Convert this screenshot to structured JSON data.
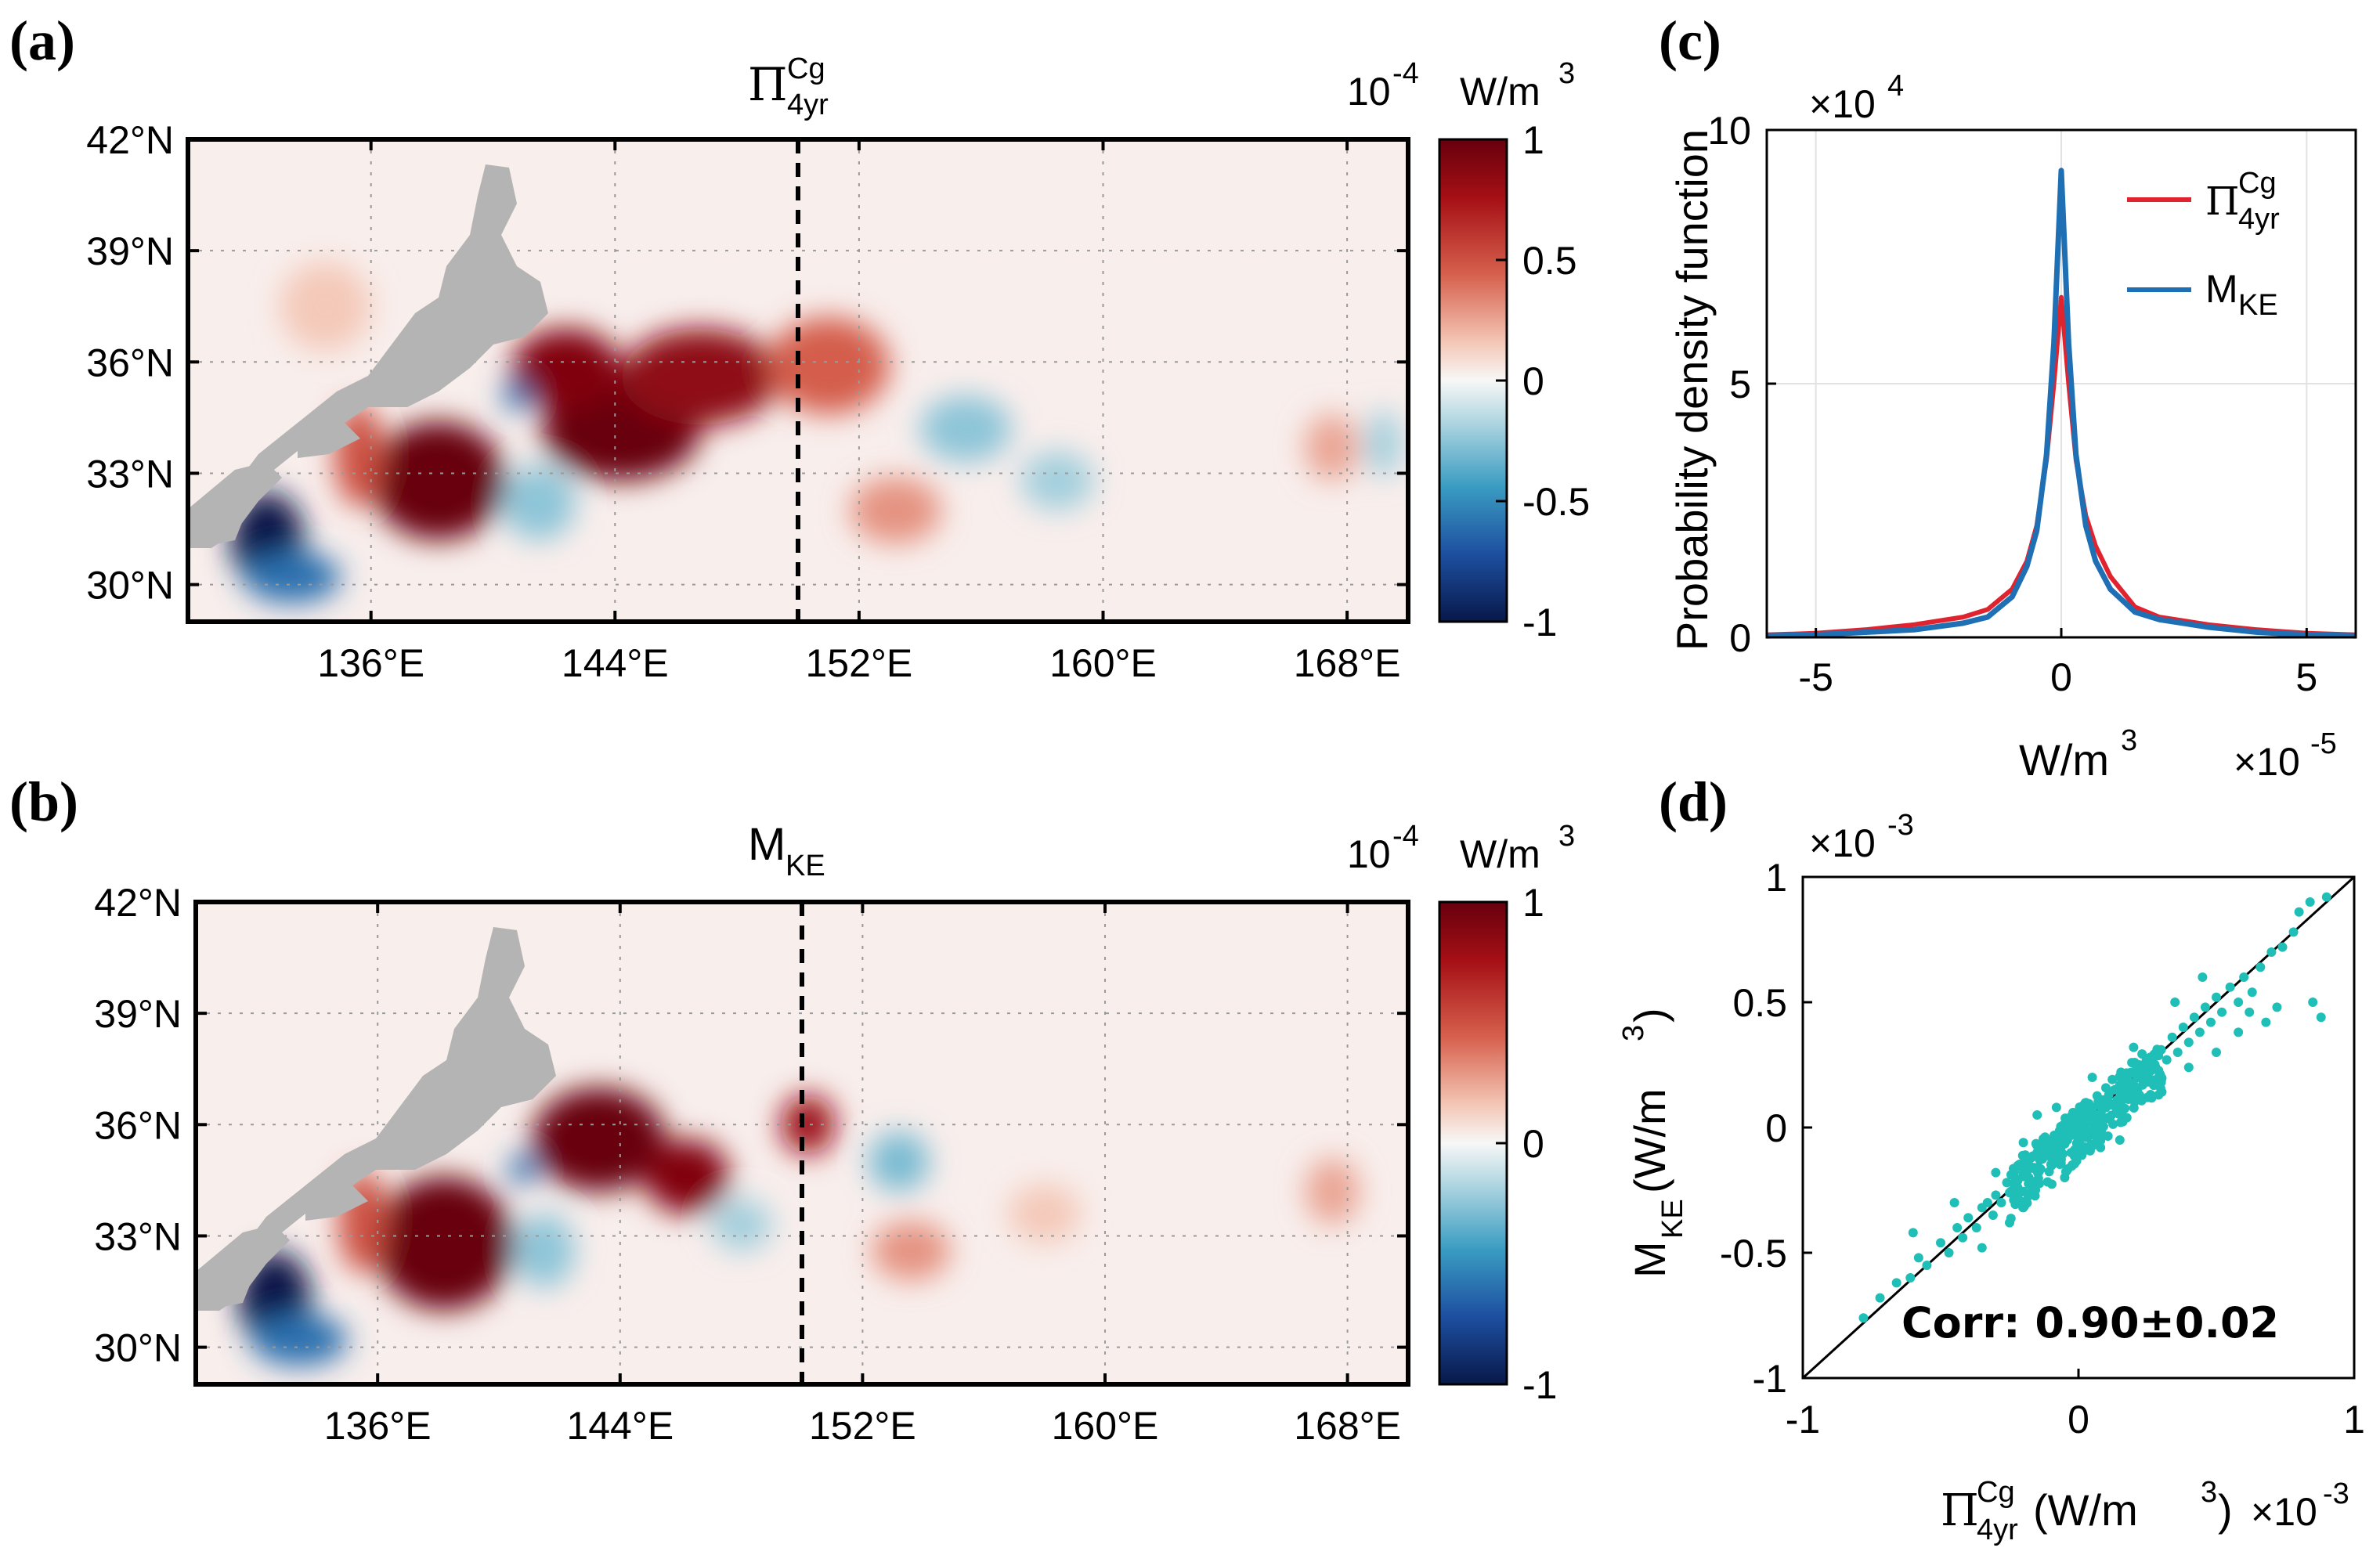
{
  "panels": {
    "a": {
      "letter": "(a)",
      "title_main": "Π",
      "title_sup": "Cg",
      "title_sub": "4yr",
      "cb_exp_base": "10",
      "cb_exp_pow": "-4",
      "cb_unit_main": "W/m",
      "cb_unit_pow": "3"
    },
    "b": {
      "letter": "(b)",
      "title_main": "M",
      "title_sub": "KE",
      "cb_exp_base": "10",
      "cb_exp_pow": "-4",
      "cb_unit_main": "W/m",
      "cb_unit_pow": "3"
    },
    "c": {
      "letter": "(c)",
      "ylabel": "Probability density function",
      "xlabel_main": "W/m",
      "xlabel_pow": "3",
      "y_mult": "×10",
      "y_mult_pow": "4",
      "x_mult": "×10",
      "x_mult_pow": "-5",
      "legend_pi_main": "Π",
      "legend_pi_sup": "Cg",
      "legend_pi_sub": "4yr",
      "legend_m_main": "M",
      "legend_m_sub": "KE"
    },
    "d": {
      "letter": "(d)",
      "ylabel_main": "M",
      "ylabel_sub": "KE",
      "ylabel_rest": " (W/m",
      "ylabel_pow": "3",
      "ylabel_close": ")",
      "xlabel_main": "Π",
      "xlabel_sup": "Cg",
      "xlabel_sub": "4yr",
      "xlabel_rest": " (W/m",
      "xlabel_pow": "3",
      "xlabel_close": ")",
      "y_mult": "×10",
      "y_mult_pow": "-3",
      "x_mult": "×10",
      "x_mult_pow": "-3",
      "corr_text": "Corr: 0.90±0.02"
    }
  },
  "colors": {
    "red_line": "#e0242f",
    "blue_line": "#1f6fb5",
    "scatter": "#1fbfb8",
    "land": "#b4b4b4",
    "dark_red": "#67000d",
    "dark_blue": "#08184a"
  },
  "chart_data": [
    {
      "type": "heatmap",
      "panel": "a",
      "title": "Π_4yr^Cg",
      "colorbar": {
        "unit": "10^-4 W/m^3",
        "ticks": [
          1,
          0.5,
          0,
          -0.5,
          -1
        ],
        "range": [
          -1,
          1
        ]
      },
      "x_ticks": [
        "136°E",
        "144°E",
        "152°E",
        "160°E",
        "168°E"
      ],
      "x_tick_values": [
        136,
        144,
        152,
        160,
        168
      ],
      "y_ticks": [
        "42°N",
        "39°N",
        "36°N",
        "33°N",
        "30°N"
      ],
      "y_tick_values": [
        42,
        39,
        36,
        33,
        30
      ],
      "xlim": [
        130,
        170
      ],
      "ylim": [
        29,
        42
      ],
      "dashed_meridian": 150,
      "features": [
        {
          "lon": 138.2,
          "lat": 32.8,
          "value": 1.0,
          "rx": 2.2,
          "ry": 1.6
        },
        {
          "lon": 144.2,
          "lat": 34.2,
          "value": 1.0,
          "rx": 2.6,
          "ry": 1.4
        },
        {
          "lon": 142.4,
          "lat": 35.8,
          "value": 0.9,
          "rx": 1.8,
          "ry": 1.1
        },
        {
          "lon": 146.8,
          "lat": 35.6,
          "value": 0.85,
          "rx": 2.6,
          "ry": 1.3
        },
        {
          "lon": 151.0,
          "lat": 35.9,
          "value": 0.45,
          "rx": 2.0,
          "ry": 1.3
        },
        {
          "lon": 135.6,
          "lat": 33.5,
          "value": 0.5,
          "rx": 0.8,
          "ry": 1.4
        },
        {
          "lon": 132.6,
          "lat": 31.2,
          "value": -1.0,
          "rx": 1.2,
          "ry": 1.3
        },
        {
          "lon": 133.4,
          "lat": 30.2,
          "value": -0.6,
          "rx": 1.6,
          "ry": 0.7
        },
        {
          "lon": 140.8,
          "lat": 35.1,
          "value": -0.6,
          "rx": 0.5,
          "ry": 0.4
        },
        {
          "lon": 155.5,
          "lat": 34.2,
          "value": -0.25,
          "rx": 1.5,
          "ry": 0.9
        },
        {
          "lon": 153.2,
          "lat": 32.0,
          "value": 0.3,
          "rx": 1.5,
          "ry": 0.9
        },
        {
          "lon": 141.5,
          "lat": 32.2,
          "value": -0.25,
          "rx": 1.2,
          "ry": 1.0
        },
        {
          "lon": 158.5,
          "lat": 32.8,
          "value": -0.2,
          "rx": 1.2,
          "ry": 0.8
        },
        {
          "lon": 167.5,
          "lat": 33.7,
          "value": 0.25,
          "rx": 0.9,
          "ry": 0.9
        },
        {
          "lon": 134.5,
          "lat": 37.5,
          "value": 0.15,
          "rx": 1.5,
          "ry": 1.2
        },
        {
          "lon": 169.2,
          "lat": 33.8,
          "value": -0.2,
          "rx": 0.6,
          "ry": 0.9
        }
      ]
    },
    {
      "type": "heatmap",
      "panel": "b",
      "title": "M_KE",
      "colorbar": {
        "unit": "10^-4 W/m^3",
        "ticks": [
          1,
          0,
          -1
        ],
        "range": [
          -1,
          1
        ]
      },
      "x_ticks": [
        "136°E",
        "144°E",
        "152°E",
        "160°E",
        "168°E"
      ],
      "x_tick_values": [
        136,
        144,
        152,
        160,
        168
      ],
      "y_ticks": [
        "42°N",
        "39°N",
        "36°N",
        "33°N",
        "30°N"
      ],
      "y_tick_values": [
        42,
        39,
        36,
        33,
        30
      ],
      "xlim": [
        130,
        170
      ],
      "ylim": [
        29,
        42
      ],
      "dashed_meridian": 150,
      "features": [
        {
          "lon": 138.2,
          "lat": 32.8,
          "value": 1.0,
          "rx": 2.3,
          "ry": 1.8
        },
        {
          "lon": 143.3,
          "lat": 35.6,
          "value": 1.0,
          "rx": 2.2,
          "ry": 1.4
        },
        {
          "lon": 146.2,
          "lat": 34.6,
          "value": 0.9,
          "rx": 1.4,
          "ry": 1.0
        },
        {
          "lon": 150.2,
          "lat": 36.0,
          "value": 0.8,
          "rx": 0.9,
          "ry": 0.8
        },
        {
          "lon": 135.5,
          "lat": 33.4,
          "value": 0.5,
          "rx": 0.8,
          "ry": 1.4
        },
        {
          "lon": 132.6,
          "lat": 31.3,
          "value": -1.0,
          "rx": 1.2,
          "ry": 1.3
        },
        {
          "lon": 133.4,
          "lat": 30.2,
          "value": -0.6,
          "rx": 1.6,
          "ry": 0.7
        },
        {
          "lon": 140.8,
          "lat": 34.8,
          "value": -0.6,
          "rx": 0.5,
          "ry": 0.4
        },
        {
          "lon": 153.2,
          "lat": 35.0,
          "value": -0.3,
          "rx": 1.0,
          "ry": 0.8
        },
        {
          "lon": 153.6,
          "lat": 32.6,
          "value": 0.3,
          "rx": 1.3,
          "ry": 0.8
        },
        {
          "lon": 141.5,
          "lat": 32.6,
          "value": -0.25,
          "rx": 1.0,
          "ry": 1.0
        },
        {
          "lon": 167.5,
          "lat": 34.2,
          "value": 0.25,
          "rx": 0.9,
          "ry": 0.9
        },
        {
          "lon": 148.0,
          "lat": 33.3,
          "value": -0.2,
          "rx": 1.0,
          "ry": 0.7
        },
        {
          "lon": 158.0,
          "lat": 33.6,
          "value": 0.15,
          "rx": 1.2,
          "ry": 0.8
        }
      ]
    },
    {
      "type": "line",
      "panel": "c",
      "ylabel": "Probability density function",
      "xlabel": "W/m^3",
      "x_scale": "×10^-5",
      "y_scale": "×10^4",
      "xlim": [
        -6,
        6
      ],
      "ylim": [
        0,
        10
      ],
      "x_ticks": [
        -5,
        0,
        5
      ],
      "y_ticks": [
        0,
        5,
        10
      ],
      "grid": true,
      "legend": "top-right",
      "series": [
        {
          "name": "Π_4yr^Cg",
          "color": "red",
          "x": [
            -6,
            -5,
            -4,
            -3,
            -2,
            -1.5,
            -1,
            -0.7,
            -0.5,
            -0.3,
            -0.15,
            0,
            0.15,
            0.3,
            0.5,
            0.7,
            1,
            1.5,
            2,
            3,
            4,
            5,
            6
          ],
          "y": [
            0.05,
            0.08,
            0.15,
            0.25,
            0.4,
            0.55,
            0.95,
            1.5,
            2.2,
            3.5,
            5.0,
            6.7,
            5.0,
            3.5,
            2.4,
            1.8,
            1.2,
            0.6,
            0.4,
            0.25,
            0.15,
            0.08,
            0.05
          ]
        },
        {
          "name": "M_KE",
          "color": "blue",
          "x": [
            -6,
            -5,
            -4,
            -3,
            -2,
            -1.5,
            -1,
            -0.7,
            -0.5,
            -0.3,
            -0.15,
            0,
            0.15,
            0.3,
            0.5,
            0.7,
            1,
            1.5,
            2,
            3,
            4,
            5,
            6
          ],
          "y": [
            0.03,
            0.05,
            0.1,
            0.15,
            0.28,
            0.4,
            0.8,
            1.4,
            2.1,
            3.6,
            5.8,
            9.2,
            5.8,
            3.6,
            2.2,
            1.5,
            0.95,
            0.5,
            0.35,
            0.2,
            0.1,
            0.05,
            0.03
          ]
        }
      ]
    },
    {
      "type": "scatter",
      "panel": "d",
      "xlabel": "Π_4yr^Cg (W/m^3)",
      "ylabel": "M_KE (W/m^3)",
      "x_scale": "×10^-3",
      "y_scale": "×10^-3",
      "xlim": [
        -1,
        1
      ],
      "ylim": [
        -1,
        1
      ],
      "x_ticks": [
        -1,
        0,
        1
      ],
      "y_ticks": [
        -1,
        -0.5,
        0,
        0.5,
        1
      ],
      "reference_line": [
        [
          -1,
          -1
        ],
        [
          1,
          1
        ]
      ],
      "annotation": "Corr: 0.90±0.02",
      "points": [
        [
          -0.78,
          -0.76
        ],
        [
          -0.72,
          -0.68
        ],
        [
          -0.66,
          -0.62
        ],
        [
          -0.61,
          -0.6
        ],
        [
          -0.58,
          -0.52
        ],
        [
          -0.55,
          -0.55
        ],
        [
          -0.5,
          -0.46
        ],
        [
          -0.47,
          -0.5
        ],
        [
          -0.44,
          -0.4
        ],
        [
          -0.42,
          -0.44
        ],
        [
          -0.4,
          -0.36
        ],
        [
          -0.37,
          -0.4
        ],
        [
          -0.35,
          -0.32
        ],
        [
          -0.33,
          -0.3
        ],
        [
          -0.31,
          -0.35
        ],
        [
          -0.3,
          -0.27
        ],
        [
          -0.28,
          -0.3
        ],
        [
          -0.26,
          -0.22
        ],
        [
          -0.25,
          -0.26
        ],
        [
          -0.23,
          -0.2
        ],
        [
          -0.22,
          -0.24
        ],
        [
          -0.2,
          -0.18
        ],
        [
          -0.19,
          -0.15
        ],
        [
          -0.18,
          -0.2
        ],
        [
          -0.17,
          -0.12
        ],
        [
          -0.16,
          -0.16
        ],
        [
          -0.15,
          -0.1
        ],
        [
          -0.14,
          -0.13
        ],
        [
          -0.13,
          -0.08
        ],
        [
          -0.12,
          -0.11
        ],
        [
          -0.11,
          -0.06
        ],
        [
          -0.1,
          -0.09
        ],
        [
          -0.09,
          -0.05
        ],
        [
          -0.08,
          -0.1
        ],
        [
          -0.07,
          -0.03
        ],
        [
          -0.06,
          -0.07
        ],
        [
          -0.05,
          -0.02
        ],
        [
          -0.04,
          -0.05
        ],
        [
          -0.03,
          0.0
        ],
        [
          -0.02,
          -0.03
        ],
        [
          -0.01,
          0.02
        ],
        [
          0.0,
          -0.01
        ],
        [
          0.01,
          0.03
        ],
        [
          0.02,
          0.0
        ],
        [
          0.03,
          0.05
        ],
        [
          0.04,
          0.02
        ],
        [
          0.05,
          0.07
        ],
        [
          0.06,
          0.04
        ],
        [
          0.07,
          0.09
        ],
        [
          0.08,
          0.05
        ],
        [
          0.09,
          0.11
        ],
        [
          0.1,
          0.08
        ],
        [
          0.11,
          0.13
        ],
        [
          0.12,
          0.09
        ],
        [
          0.13,
          0.15
        ],
        [
          0.14,
          0.11
        ],
        [
          0.15,
          0.17
        ],
        [
          0.16,
          0.13
        ],
        [
          0.17,
          0.2
        ],
        [
          0.18,
          0.15
        ],
        [
          0.19,
          0.22
        ],
        [
          0.2,
          0.17
        ],
        [
          0.22,
          0.25
        ],
        [
          0.24,
          0.2
        ],
        [
          0.26,
          0.28
        ],
        [
          0.28,
          0.24
        ],
        [
          0.3,
          0.31
        ],
        [
          0.32,
          0.27
        ],
        [
          0.34,
          0.36
        ],
        [
          0.36,
          0.3
        ],
        [
          0.38,
          0.4
        ],
        [
          0.4,
          0.34
        ],
        [
          0.42,
          0.44
        ],
        [
          0.44,
          0.38
        ],
        [
          0.46,
          0.48
        ],
        [
          0.48,
          0.42
        ],
        [
          0.5,
          0.52
        ],
        [
          0.52,
          0.46
        ],
        [
          0.55,
          0.56
        ],
        [
          0.58,
          0.5
        ],
        [
          0.6,
          0.6
        ],
        [
          0.63,
          0.54
        ],
        [
          0.66,
          0.64
        ],
        [
          0.7,
          0.7
        ],
        [
          0.74,
          0.72
        ],
        [
          0.78,
          0.78
        ],
        [
          0.8,
          0.86
        ],
        [
          0.84,
          0.9
        ],
        [
          0.9,
          0.92
        ],
        [
          0.85,
          0.5
        ],
        [
          0.88,
          0.44
        ],
        [
          0.68,
          0.42
        ],
        [
          0.72,
          0.48
        ],
        [
          0.58,
          0.38
        ],
        [
          -0.45,
          -0.3
        ],
        [
          -0.6,
          -0.42
        ],
        [
          -0.35,
          -0.48
        ],
        [
          0.45,
          0.6
        ],
        [
          0.35,
          0.5
        ],
        [
          -0.25,
          -0.38
        ],
        [
          0.25,
          0.12
        ],
        [
          -0.15,
          0.05
        ],
        [
          0.15,
          -0.05
        ],
        [
          -0.08,
          0.08
        ],
        [
          0.08,
          -0.08
        ],
        [
          0.3,
          0.18
        ],
        [
          -0.3,
          -0.18
        ],
        [
          0.5,
          0.3
        ],
        [
          -0.2,
          -0.06
        ],
        [
          0.2,
          0.32
        ],
        [
          0.05,
          0.2
        ],
        [
          -0.05,
          -0.2
        ],
        [
          0.4,
          0.24
        ],
        [
          0.62,
          0.46
        ]
      ]
    }
  ]
}
